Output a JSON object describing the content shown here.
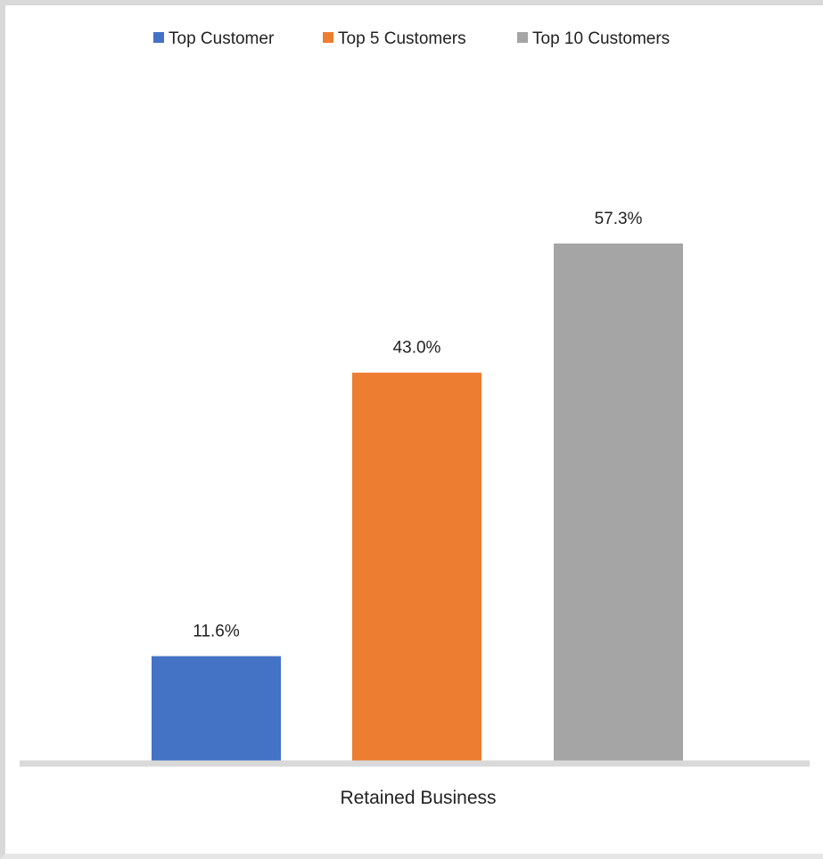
{
  "chart_data": {
    "type": "bar",
    "categories": [
      "Retained Business"
    ],
    "series": [
      {
        "name": "Top Customer",
        "values": [
          11.6
        ],
        "label": "11.6%",
        "color": "#4472C4"
      },
      {
        "name": "Top 5 Customers",
        "values": [
          43.0
        ],
        "label": "43.0%",
        "color": "#ED7D31"
      },
      {
        "name": "Top 10 Customers",
        "values": [
          57.3
        ],
        "label": "57.3%",
        "color": "#A5A5A5"
      }
    ],
    "ylim": [
      0,
      67
    ],
    "legend_position": "top",
    "grid": false,
    "value_format": "percent",
    "axis_color": "#d9d9d9"
  }
}
